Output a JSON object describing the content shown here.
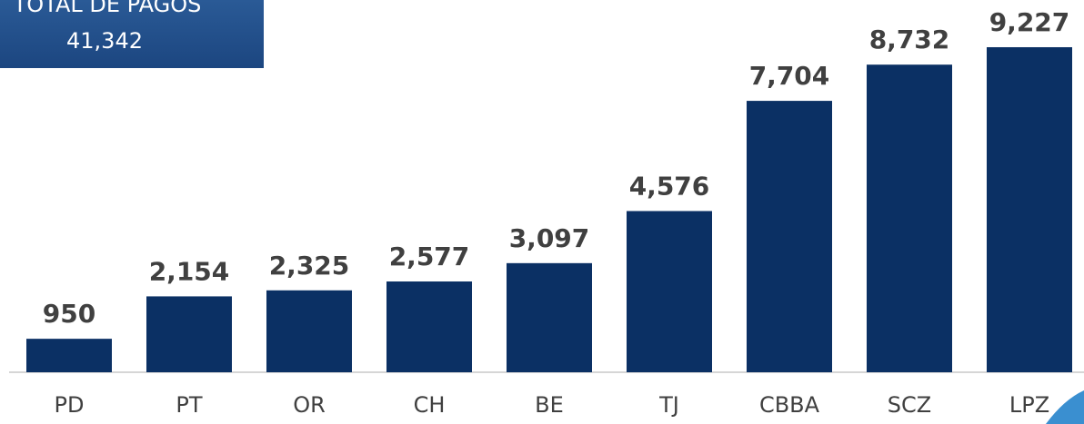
{
  "chart_data": {
    "type": "bar",
    "box_title": "TOTAL DE PAGOS",
    "box_value": "41,342",
    "categories": [
      "PD",
      "PT",
      "OR",
      "CH",
      "BE",
      "TJ",
      "CBBA",
      "SCZ",
      "LPZ"
    ],
    "values": [
      950,
      2154,
      2325,
      2577,
      3097,
      4576,
      7704,
      8732,
      9227
    ],
    "value_labels": [
      "950",
      "2,154",
      "2,325",
      "2,577",
      "3,097",
      "4,576",
      "7,704",
      "8,732",
      "9,227"
    ],
    "color": "#0b3064",
    "ylim": [
      0,
      10000
    ]
  }
}
